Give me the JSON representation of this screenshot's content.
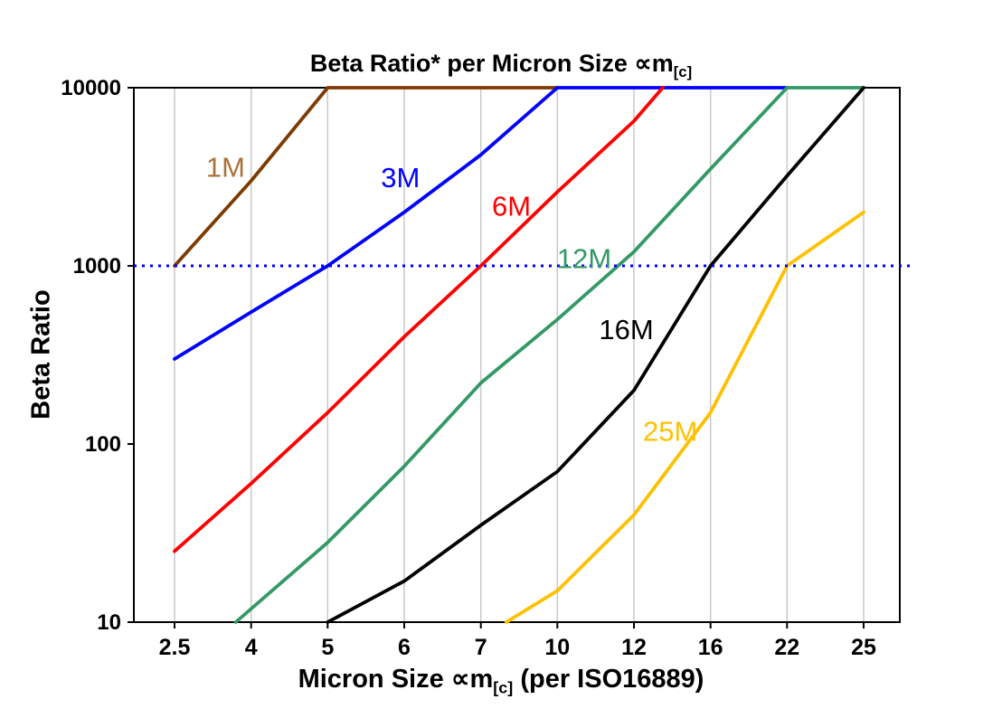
{
  "title": {
    "prefix": "Beta Ratio* per Micron Size ",
    "symbol": "∝m",
    "sub": "[c]"
  },
  "y_axis_label": "Beta Ratio",
  "x_axis_label": {
    "prefix": "Micron Size ",
    "symbol": "∝m",
    "sub": "[c]",
    "suffix": " (per ISO16889)"
  },
  "chart_data": {
    "type": "line",
    "x_scale": "categorical",
    "y_scale": "log",
    "categories": [
      2.5,
      4,
      5,
      6,
      7,
      10,
      12,
      16,
      22,
      25
    ],
    "x_tick_labels": [
      "2.5",
      "4",
      "5",
      "6",
      "7",
      "10",
      "12",
      "16",
      "22",
      "25"
    ],
    "y_ticks": [
      10,
      100,
      1000,
      10000
    ],
    "y_tick_labels": [
      "10",
      "100",
      "1000",
      "10000"
    ],
    "ylim": [
      10,
      10000
    ],
    "grid": "vertical",
    "grid_color": "#c9c9c9",
    "reference_line": {
      "y": 1000,
      "color": "#0000ff",
      "style": "dotted"
    },
    "series": [
      {
        "name": "1M",
        "color": "#7e3a00",
        "points": [
          [
            2.5,
            1000
          ],
          [
            4,
            3000
          ],
          [
            5,
            10000
          ],
          [
            10,
            10000
          ]
        ]
      },
      {
        "name": "3M",
        "color": "#0000ff",
        "points": [
          [
            2.5,
            300
          ],
          [
            4,
            550
          ],
          [
            5,
            1000
          ],
          [
            6,
            2000
          ],
          [
            7,
            4200
          ],
          [
            10,
            10000
          ],
          [
            22,
            10000
          ]
        ]
      },
      {
        "name": "6M",
        "color": "#ff0000",
        "points": [
          [
            2.5,
            25
          ],
          [
            4,
            60
          ],
          [
            5,
            150
          ],
          [
            6,
            400
          ],
          [
            7,
            1000
          ],
          [
            10,
            2600
          ],
          [
            12,
            6500
          ],
          [
            13.5,
            10000
          ]
        ]
      },
      {
        "name": "12M",
        "color": "#339966",
        "points": [
          [
            3.7,
            10
          ],
          [
            5,
            28
          ],
          [
            6,
            75
          ],
          [
            7,
            220
          ],
          [
            10,
            500
          ],
          [
            12,
            1200
          ],
          [
            16,
            3500
          ],
          [
            22,
            10000
          ],
          [
            25,
            10000
          ]
        ]
      },
      {
        "name": "16M",
        "color": "#000000",
        "points": [
          [
            5,
            10
          ],
          [
            6,
            17
          ],
          [
            7,
            35
          ],
          [
            10,
            70
          ],
          [
            12,
            200
          ],
          [
            16,
            1000
          ],
          [
            22,
            3200
          ],
          [
            25,
            10000
          ]
        ]
      },
      {
        "name": "25M",
        "color": "#ffc000",
        "points": [
          [
            8,
            10
          ],
          [
            10,
            15
          ],
          [
            12,
            40
          ],
          [
            16,
            150
          ],
          [
            22,
            1000
          ],
          [
            25,
            2000
          ]
        ]
      }
    ],
    "labels": [
      {
        "text": "1M",
        "color": "#a9713c",
        "x": 3.5,
        "beta": 3550
      },
      {
        "text": "3M",
        "color": "#0000ff",
        "x": 5.95,
        "beta": 3100
      },
      {
        "text": "6M",
        "color": "#ff0000",
        "x": 8.2,
        "beta": 2150
      },
      {
        "text": "12M",
        "color": "#339966",
        "x": 10.7,
        "beta": 1090
      },
      {
        "text": "16M",
        "color": "#000000",
        "x": 11.8,
        "beta": 437
      },
      {
        "text": "25M",
        "color": "#ffc000",
        "x": 13.9,
        "beta": 117
      }
    ]
  }
}
